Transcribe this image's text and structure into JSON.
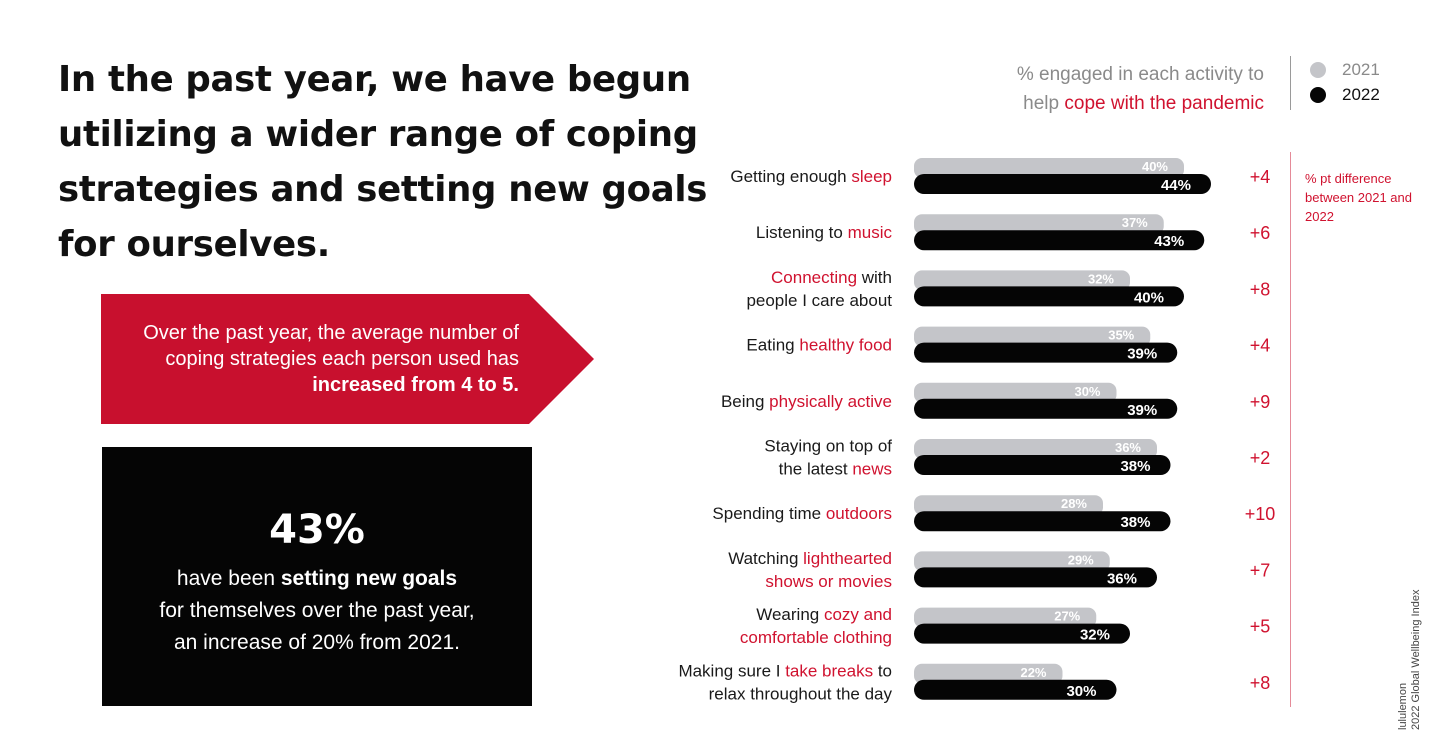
{
  "headline": "In the past year, we have begun utilizing a wider range of coping strategies and setting new goals for ourselves.",
  "red_callout": {
    "text": "Over the past year, the average number of coping strategies each person used has",
    "bold": "increased from 4 to 5.",
    "color": "#c8102e"
  },
  "stat_box": {
    "number": "43%",
    "line1_prefix": "have been",
    "line1_bold": "setting new goals",
    "line2": "for themselves over the past year,",
    "line3": "an increase of 20% from 2021."
  },
  "chart_subtitle": {
    "line1": "% engaged in each activity to",
    "line2_prefix": "help",
    "line2_accent": "cope with the pandemic"
  },
  "diff_note": "% pt difference between 2021 and 2022",
  "footer": {
    "line1": "lululemon",
    "line2": "2022 Global Wellbeing Index"
  },
  "colors": {
    "accent": "#d0122f",
    "bar_2021": "#c4c5c9",
    "bar_2022": "#050505"
  },
  "chart_data": {
    "type": "bar",
    "orientation": "horizontal",
    "legend_placement": "top-right",
    "categories": [
      {
        "lines": [
          [
            {
              "t": "Getting enough "
            },
            {
              "t": "sleep",
              "accent": true
            }
          ]
        ]
      },
      {
        "lines": [
          [
            {
              "t": "Listening to "
            },
            {
              "t": "music",
              "accent": true
            }
          ]
        ]
      },
      {
        "lines": [
          [
            {
              "t": "Connecting",
              "accent": true
            },
            {
              "t": " with"
            }
          ],
          [
            {
              "t": "people I care about"
            }
          ]
        ]
      },
      {
        "lines": [
          [
            {
              "t": "Eating "
            },
            {
              "t": "healthy food",
              "accent": true
            }
          ]
        ]
      },
      {
        "lines": [
          [
            {
              "t": "Being "
            },
            {
              "t": "physically active",
              "accent": true
            }
          ]
        ]
      },
      {
        "lines": [
          [
            {
              "t": "Staying on top of"
            }
          ],
          [
            {
              "t": "the latest "
            },
            {
              "t": "news",
              "accent": true
            }
          ]
        ]
      },
      {
        "lines": [
          [
            {
              "t": "Spending time "
            },
            {
              "t": "outdoors",
              "accent": true
            }
          ]
        ]
      },
      {
        "lines": [
          [
            {
              "t": "Watching "
            },
            {
              "t": "lighthearted",
              "accent": true
            }
          ],
          [
            {
              "t": "shows or movies",
              "accent": true
            }
          ]
        ]
      },
      {
        "lines": [
          [
            {
              "t": "Wearing "
            },
            {
              "t": "cozy and",
              "accent": true
            }
          ],
          [
            {
              "t": "comfortable clothing",
              "accent": true
            }
          ]
        ]
      },
      {
        "lines": [
          [
            {
              "t": "Making sure I "
            },
            {
              "t": "take breaks",
              "accent": true
            },
            {
              "t": " to"
            }
          ],
          [
            {
              "t": "relax throughout the day"
            }
          ]
        ]
      }
    ],
    "series": [
      {
        "name": "2021",
        "values": [
          40,
          37,
          32,
          35,
          30,
          36,
          28,
          29,
          27,
          22
        ]
      },
      {
        "name": "2022",
        "values": [
          44,
          43,
          40,
          39,
          39,
          38,
          38,
          36,
          32,
          30
        ]
      }
    ],
    "differences": [
      "+4",
      "+6",
      "+8",
      "+4",
      "+9",
      "+2",
      "+10",
      "+7",
      "+5",
      "+8"
    ],
    "value_suffix": "%"
  }
}
